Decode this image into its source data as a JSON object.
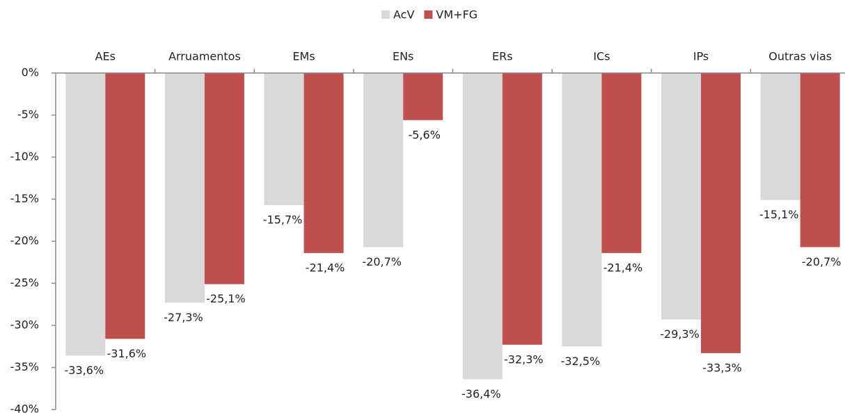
{
  "chart_data": {
    "type": "bar",
    "categories": [
      "AEs",
      "Arruamentos",
      "EMs",
      "ENs",
      "ERs",
      "ICs",
      "IPs",
      "Outras vias"
    ],
    "series": [
      {
        "name": "AcV",
        "color": "#d9d9d9",
        "values": [
          -33.6,
          -27.3,
          -15.7,
          -20.7,
          -36.4,
          -32.5,
          -29.3,
          -15.1
        ],
        "value_labels": [
          "-33,6%",
          "-27,3%",
          "-15,7%",
          "-20,7%",
          "-36,4%",
          "-32,5%",
          "-29,3%",
          "-15,1%"
        ]
      },
      {
        "name": "VM+FG",
        "color": "#c0504d",
        "values": [
          -31.6,
          -25.1,
          -21.4,
          -5.6,
          -32.3,
          -21.4,
          -33.3,
          -20.7
        ],
        "value_labels": [
          "-31,6%",
          "-25,1%",
          "-21,4%",
          "-5,6%",
          "-32,3%",
          "-21,4%",
          "-33,3%",
          "-20,7%"
        ]
      }
    ],
    "ylim": [
      -40,
      0
    ],
    "yticks": [
      {
        "value": 0,
        "label": "0%"
      },
      {
        "value": -5,
        "label": "-5%"
      },
      {
        "value": -10,
        "label": "-10%"
      },
      {
        "value": -15,
        "label": "-15%"
      },
      {
        "value": -20,
        "label": "-20%"
      },
      {
        "value": -25,
        "label": "-25%"
      },
      {
        "value": -30,
        "label": "-30%"
      },
      {
        "value": -35,
        "label": "-35%"
      },
      {
        "value": -40,
        "label": "-40%"
      }
    ],
    "legend": "top"
  }
}
